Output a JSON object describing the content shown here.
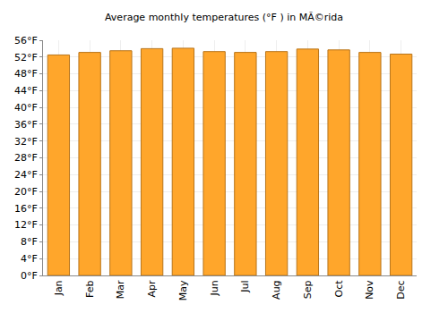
{
  "chart_data": {
    "type": "bar",
    "title": "Average monthly temperatures (°F ) in MÃ©rida",
    "categories": [
      "Jan",
      "Feb",
      "Mar",
      "Apr",
      "May",
      "Jun",
      "Jul",
      "Aug",
      "Sep",
      "Oct",
      "Nov",
      "Dec"
    ],
    "values": [
      52.5,
      53.1,
      53.5,
      54.0,
      54.1,
      53.3,
      53.1,
      53.3,
      53.9,
      53.7,
      53.1,
      52.7
    ],
    "color": "#ffa62b",
    "ylim": [
      0,
      56
    ],
    "yticks": [
      {
        "value": 0,
        "label": "0°F"
      },
      {
        "value": 4,
        "label": "4°F"
      },
      {
        "value": 8,
        "label": "8°F"
      },
      {
        "value": 12,
        "label": "12°F"
      },
      {
        "value": 16,
        "label": "16°F"
      },
      {
        "value": 20,
        "label": "20°F"
      },
      {
        "value": 24,
        "label": "24°F"
      },
      {
        "value": 28,
        "label": "28°F"
      },
      {
        "value": 32,
        "label": "32°F"
      },
      {
        "value": 36,
        "label": "36°F"
      },
      {
        "value": 40,
        "label": "40°F"
      },
      {
        "value": 44,
        "label": "44°F"
      },
      {
        "value": 48,
        "label": "48°F"
      },
      {
        "value": 52,
        "label": "52°F"
      },
      {
        "value": 56,
        "label": "56°F"
      }
    ],
    "grid": true
  }
}
